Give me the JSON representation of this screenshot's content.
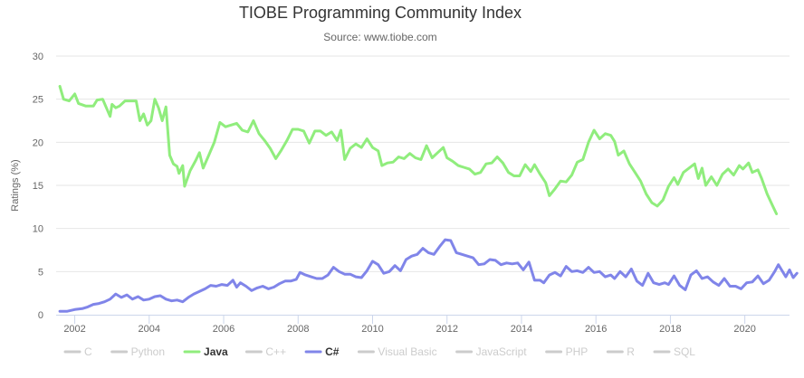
{
  "chart_data": {
    "type": "line",
    "title": "TIOBE Programming Community Index",
    "subtitle": "Source: www.tiobe.com",
    "xlabel": "",
    "ylabel": "Ratings (%)",
    "xlim": [
      2001.5,
      2021.2
    ],
    "ylim": [
      0,
      30
    ],
    "x_ticks": [
      "2002",
      "2004",
      "2006",
      "2008",
      "2010",
      "2012",
      "2014",
      "2016",
      "2018",
      "2020"
    ],
    "y_ticks": [
      "0",
      "5",
      "10",
      "15",
      "20",
      "25",
      "30"
    ],
    "grid": "horizontal",
    "legend_position": "bottom",
    "legend": [
      {
        "name": "C",
        "visible": false,
        "color": "#cccccc"
      },
      {
        "name": "Python",
        "visible": false,
        "color": "#cccccc"
      },
      {
        "name": "Java",
        "visible": true,
        "color": "#90ed7d"
      },
      {
        "name": "C++",
        "visible": false,
        "color": "#cccccc"
      },
      {
        "name": "C#",
        "visible": true,
        "color": "#8085e9"
      },
      {
        "name": "Visual Basic",
        "visible": false,
        "color": "#cccccc"
      },
      {
        "name": "JavaScript",
        "visible": false,
        "color": "#cccccc"
      },
      {
        "name": "PHP",
        "visible": false,
        "color": "#cccccc"
      },
      {
        "name": "R",
        "visible": false,
        "color": "#cccccc"
      },
      {
        "name": "SQL",
        "visible": false,
        "color": "#cccccc"
      }
    ],
    "series": [
      {
        "name": "Java",
        "color": "#90ed7d",
        "points": [
          [
            2001.6,
            26.5
          ],
          [
            2001.7,
            25.0
          ],
          [
            2001.85,
            24.8
          ],
          [
            2002.0,
            25.6
          ],
          [
            2002.1,
            24.5
          ],
          [
            2002.3,
            24.2
          ],
          [
            2002.5,
            24.2
          ],
          [
            2002.6,
            24.9
          ],
          [
            2002.75,
            25.0
          ],
          [
            2002.85,
            24.0
          ],
          [
            2002.95,
            23.0
          ],
          [
            2003.0,
            24.4
          ],
          [
            2003.1,
            24.0
          ],
          [
            2003.2,
            24.2
          ],
          [
            2003.35,
            24.8
          ],
          [
            2003.5,
            24.8
          ],
          [
            2003.65,
            24.8
          ],
          [
            2003.75,
            22.5
          ],
          [
            2003.85,
            23.3
          ],
          [
            2003.95,
            22.0
          ],
          [
            2004.05,
            22.5
          ],
          [
            2004.15,
            25.0
          ],
          [
            2004.25,
            24.0
          ],
          [
            2004.35,
            22.5
          ],
          [
            2004.45,
            24.1
          ],
          [
            2004.55,
            18.5
          ],
          [
            2004.65,
            17.5
          ],
          [
            2004.75,
            17.2
          ],
          [
            2004.8,
            16.4
          ],
          [
            2004.9,
            17.3
          ],
          [
            2004.95,
            14.9
          ],
          [
            2005.1,
            16.7
          ],
          [
            2005.25,
            17.9
          ],
          [
            2005.35,
            18.8
          ],
          [
            2005.45,
            17.0
          ],
          [
            2005.6,
            18.5
          ],
          [
            2005.75,
            20.0
          ],
          [
            2005.9,
            22.3
          ],
          [
            2006.05,
            21.8
          ],
          [
            2006.2,
            22.0
          ],
          [
            2006.35,
            22.2
          ],
          [
            2006.5,
            21.4
          ],
          [
            2006.65,
            21.2
          ],
          [
            2006.8,
            22.5
          ],
          [
            2006.95,
            21.0
          ],
          [
            2007.1,
            20.2
          ],
          [
            2007.25,
            19.3
          ],
          [
            2007.4,
            18.1
          ],
          [
            2007.55,
            19.1
          ],
          [
            2007.7,
            20.2
          ],
          [
            2007.85,
            21.5
          ],
          [
            2008.0,
            21.5
          ],
          [
            2008.15,
            21.3
          ],
          [
            2008.3,
            19.9
          ],
          [
            2008.45,
            21.3
          ],
          [
            2008.6,
            21.3
          ],
          [
            2008.75,
            20.8
          ],
          [
            2008.9,
            21.2
          ],
          [
            2009.05,
            20.2
          ],
          [
            2009.15,
            21.4
          ],
          [
            2009.25,
            18.0
          ],
          [
            2009.4,
            19.3
          ],
          [
            2009.55,
            19.8
          ],
          [
            2009.7,
            19.4
          ],
          [
            2009.85,
            20.4
          ],
          [
            2010.0,
            19.4
          ],
          [
            2010.15,
            19.0
          ],
          [
            2010.25,
            17.3
          ],
          [
            2010.4,
            17.6
          ],
          [
            2010.55,
            17.7
          ],
          [
            2010.7,
            18.3
          ],
          [
            2010.85,
            18.1
          ],
          [
            2011.0,
            18.7
          ],
          [
            2011.15,
            18.2
          ],
          [
            2011.3,
            18.0
          ],
          [
            2011.45,
            19.6
          ],
          [
            2011.6,
            18.2
          ],
          [
            2011.75,
            18.8
          ],
          [
            2011.9,
            19.4
          ],
          [
            2012.0,
            18.2
          ],
          [
            2012.15,
            17.8
          ],
          [
            2012.3,
            17.3
          ],
          [
            2012.45,
            17.1
          ],
          [
            2012.6,
            16.9
          ],
          [
            2012.75,
            16.3
          ],
          [
            2012.9,
            16.5
          ],
          [
            2013.05,
            17.5
          ],
          [
            2013.2,
            17.6
          ],
          [
            2013.35,
            18.3
          ],
          [
            2013.5,
            17.6
          ],
          [
            2013.65,
            16.5
          ],
          [
            2013.8,
            16.1
          ],
          [
            2013.95,
            16.1
          ],
          [
            2014.1,
            17.4
          ],
          [
            2014.25,
            16.6
          ],
          [
            2014.35,
            17.4
          ],
          [
            2014.5,
            16.3
          ],
          [
            2014.65,
            15.3
          ],
          [
            2014.75,
            13.8
          ],
          [
            2014.9,
            14.6
          ],
          [
            2015.05,
            15.5
          ],
          [
            2015.2,
            15.4
          ],
          [
            2015.35,
            16.2
          ],
          [
            2015.5,
            17.7
          ],
          [
            2015.65,
            18.0
          ],
          [
            2015.8,
            20.0
          ],
          [
            2015.95,
            21.4
          ],
          [
            2016.1,
            20.4
          ],
          [
            2016.25,
            21.0
          ],
          [
            2016.4,
            20.8
          ],
          [
            2016.5,
            20.1
          ],
          [
            2016.6,
            18.5
          ],
          [
            2016.75,
            19.0
          ],
          [
            2016.9,
            17.5
          ],
          [
            2017.05,
            16.5
          ],
          [
            2017.2,
            15.5
          ],
          [
            2017.35,
            14.0
          ],
          [
            2017.5,
            13.0
          ],
          [
            2017.65,
            12.6
          ],
          [
            2017.8,
            13.3
          ],
          [
            2017.95,
            14.9
          ],
          [
            2018.1,
            15.9
          ],
          [
            2018.2,
            15.1
          ],
          [
            2018.35,
            16.5
          ],
          [
            2018.5,
            17.0
          ],
          [
            2018.65,
            17.5
          ],
          [
            2018.75,
            15.8
          ],
          [
            2018.85,
            17.0
          ],
          [
            2018.95,
            15.0
          ],
          [
            2019.1,
            16.0
          ],
          [
            2019.25,
            15.0
          ],
          [
            2019.4,
            16.3
          ],
          [
            2019.55,
            16.9
          ],
          [
            2019.7,
            16.2
          ],
          [
            2019.85,
            17.3
          ],
          [
            2019.95,
            16.9
          ],
          [
            2020.1,
            17.6
          ],
          [
            2020.2,
            16.5
          ],
          [
            2020.35,
            16.8
          ],
          [
            2020.45,
            15.8
          ],
          [
            2020.6,
            14.0
          ],
          [
            2020.75,
            12.6
          ],
          [
            2020.85,
            11.7
          ]
        ]
      },
      {
        "name": "C#",
        "color": "#8085e9",
        "points": [
          [
            2001.6,
            0.4
          ],
          [
            2001.8,
            0.4
          ],
          [
            2002.0,
            0.6
          ],
          [
            2002.2,
            0.7
          ],
          [
            2002.35,
            0.9
          ],
          [
            2002.5,
            1.2
          ],
          [
            2002.65,
            1.3
          ],
          [
            2002.8,
            1.5
          ],
          [
            2002.95,
            1.8
          ],
          [
            2003.1,
            2.4
          ],
          [
            2003.25,
            2.0
          ],
          [
            2003.4,
            2.3
          ],
          [
            2003.55,
            1.8
          ],
          [
            2003.7,
            2.1
          ],
          [
            2003.85,
            1.7
          ],
          [
            2004.0,
            1.8
          ],
          [
            2004.15,
            2.1
          ],
          [
            2004.3,
            2.2
          ],
          [
            2004.45,
            1.8
          ],
          [
            2004.6,
            1.6
          ],
          [
            2004.75,
            1.7
          ],
          [
            2004.9,
            1.5
          ],
          [
            2005.05,
            2.0
          ],
          [
            2005.2,
            2.4
          ],
          [
            2005.35,
            2.7
          ],
          [
            2005.5,
            3.0
          ],
          [
            2005.65,
            3.4
          ],
          [
            2005.8,
            3.3
          ],
          [
            2005.95,
            3.5
          ],
          [
            2006.1,
            3.4
          ],
          [
            2006.25,
            4.0
          ],
          [
            2006.35,
            3.2
          ],
          [
            2006.45,
            3.7
          ],
          [
            2006.6,
            3.3
          ],
          [
            2006.75,
            2.8
          ],
          [
            2006.9,
            3.1
          ],
          [
            2007.05,
            3.3
          ],
          [
            2007.2,
            3.0
          ],
          [
            2007.35,
            3.2
          ],
          [
            2007.5,
            3.6
          ],
          [
            2007.65,
            3.9
          ],
          [
            2007.8,
            3.9
          ],
          [
            2007.95,
            4.1
          ],
          [
            2008.05,
            4.9
          ],
          [
            2008.2,
            4.6
          ],
          [
            2008.35,
            4.4
          ],
          [
            2008.5,
            4.2
          ],
          [
            2008.65,
            4.2
          ],
          [
            2008.8,
            4.6
          ],
          [
            2008.95,
            5.5
          ],
          [
            2009.1,
            5.0
          ],
          [
            2009.25,
            4.7
          ],
          [
            2009.4,
            4.7
          ],
          [
            2009.55,
            4.4
          ],
          [
            2009.7,
            4.3
          ],
          [
            2009.85,
            5.1
          ],
          [
            2010.0,
            6.2
          ],
          [
            2010.15,
            5.8
          ],
          [
            2010.3,
            4.8
          ],
          [
            2010.45,
            5.0
          ],
          [
            2010.6,
            5.7
          ],
          [
            2010.75,
            5.1
          ],
          [
            2010.9,
            6.4
          ],
          [
            2011.05,
            6.8
          ],
          [
            2011.2,
            7.0
          ],
          [
            2011.35,
            7.7
          ],
          [
            2011.5,
            7.2
          ],
          [
            2011.65,
            7.0
          ],
          [
            2011.8,
            7.9
          ],
          [
            2011.95,
            8.7
          ],
          [
            2012.1,
            8.6
          ],
          [
            2012.25,
            7.2
          ],
          [
            2012.4,
            7.0
          ],
          [
            2012.55,
            6.8
          ],
          [
            2012.7,
            6.6
          ],
          [
            2012.85,
            5.8
          ],
          [
            2013.0,
            5.9
          ],
          [
            2013.15,
            6.4
          ],
          [
            2013.3,
            6.3
          ],
          [
            2013.45,
            5.8
          ],
          [
            2013.6,
            6.0
          ],
          [
            2013.75,
            5.9
          ],
          [
            2013.9,
            6.0
          ],
          [
            2014.05,
            5.2
          ],
          [
            2014.2,
            6.1
          ],
          [
            2014.35,
            4.0
          ],
          [
            2014.5,
            4.0
          ],
          [
            2014.6,
            3.7
          ],
          [
            2014.75,
            4.6
          ],
          [
            2014.9,
            4.9
          ],
          [
            2015.05,
            4.5
          ],
          [
            2015.2,
            5.6
          ],
          [
            2015.35,
            5.0
          ],
          [
            2015.5,
            5.1
          ],
          [
            2015.65,
            4.9
          ],
          [
            2015.8,
            5.5
          ],
          [
            2015.95,
            4.9
          ],
          [
            2016.1,
            5.0
          ],
          [
            2016.25,
            4.4
          ],
          [
            2016.4,
            4.6
          ],
          [
            2016.5,
            4.2
          ],
          [
            2016.65,
            5.0
          ],
          [
            2016.8,
            4.4
          ],
          [
            2016.95,
            5.3
          ],
          [
            2017.1,
            3.9
          ],
          [
            2017.25,
            3.4
          ],
          [
            2017.4,
            4.8
          ],
          [
            2017.55,
            3.7
          ],
          [
            2017.7,
            3.5
          ],
          [
            2017.85,
            3.7
          ],
          [
            2017.95,
            3.5
          ],
          [
            2018.1,
            4.5
          ],
          [
            2018.25,
            3.4
          ],
          [
            2018.4,
            2.9
          ],
          [
            2018.55,
            4.6
          ],
          [
            2018.7,
            5.1
          ],
          [
            2018.85,
            4.2
          ],
          [
            2019.0,
            4.4
          ],
          [
            2019.15,
            3.8
          ],
          [
            2019.3,
            3.4
          ],
          [
            2019.45,
            4.2
          ],
          [
            2019.6,
            3.3
          ],
          [
            2019.75,
            3.3
          ],
          [
            2019.9,
            3.0
          ],
          [
            2020.05,
            3.7
          ],
          [
            2020.2,
            3.8
          ],
          [
            2020.35,
            4.5
          ],
          [
            2020.5,
            3.6
          ],
          [
            2020.65,
            4.0
          ],
          [
            2020.8,
            5.0
          ],
          [
            2020.9,
            5.8
          ],
          [
            2021.0,
            5.1
          ],
          [
            2021.1,
            4.4
          ],
          [
            2021.2,
            5.2
          ],
          [
            2021.3,
            4.3
          ],
          [
            2021.4,
            4.8
          ]
        ]
      }
    ]
  }
}
